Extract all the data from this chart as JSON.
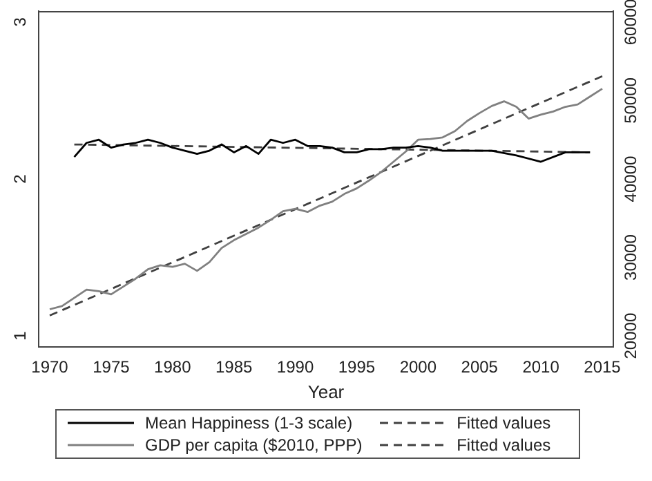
{
  "chart_data": {
    "type": "line",
    "xlabel": "Year",
    "xlim": [
      1969.1,
      2015.9
    ],
    "xticks": [
      1970,
      1975,
      1980,
      1985,
      1990,
      1995,
      2000,
      2005,
      2010,
      2015
    ],
    "ylim": [
      0.93,
      3.07
    ],
    "yticks": [
      1,
      2,
      3
    ],
    "y2lim": [
      18600,
      61400
    ],
    "y2ticks": [
      20000,
      30000,
      40000,
      50000,
      60000
    ],
    "grid": false,
    "legend": "bottom",
    "marker": "none",
    "series": [
      {
        "name": "Mean Happiness (1-3 scale)",
        "color": "#000000",
        "x": [
          1972,
          1973,
          1974,
          1975,
          1976,
          1977,
          1978,
          1979,
          1980,
          1981,
          1982,
          1983,
          1984,
          1985,
          1986,
          1987,
          1988,
          1989,
          1990,
          1991,
          1992,
          1993,
          1994,
          1995,
          1996,
          1997,
          1998,
          1999,
          2000,
          2001,
          2002,
          2004,
          2006,
          2008,
          2010,
          2012,
          2014
        ],
        "values": [
          2.14,
          2.23,
          2.25,
          2.2,
          2.22,
          2.23,
          2.25,
          2.23,
          2.2,
          2.18,
          2.16,
          2.18,
          2.22,
          2.17,
          2.21,
          2.16,
          2.25,
          2.23,
          2.25,
          2.21,
          2.21,
          2.2,
          2.17,
          2.17,
          2.19,
          2.19,
          2.2,
          2.2,
          2.21,
          2.2,
          2.18,
          2.18,
          2.18,
          2.15,
          2.11,
          2.17,
          2.17
        ]
      },
      {
        "name": "GDP per capita ($2010, PPP)",
        "color": "#808080",
        "axis": "y2",
        "x": [
          1970,
          1971,
          1973,
          1974,
          1975,
          1976,
          1977,
          1978,
          1979,
          1980,
          1981,
          1982,
          1983,
          1984,
          1985,
          1986,
          1987,
          1988,
          1989,
          1990,
          1991,
          1992,
          1993,
          1994,
          1995,
          1996,
          1997,
          1998,
          1999,
          2000,
          2001,
          2002,
          2003,
          2004,
          2005,
          2006,
          2007,
          2008,
          2009,
          2010,
          2011,
          2012,
          2013,
          2014,
          2015
        ],
        "values": [
          23400,
          23800,
          25900,
          25700,
          25300,
          26300,
          27300,
          28500,
          29000,
          28800,
          29200,
          28300,
          29400,
          31200,
          32200,
          33000,
          33800,
          34800,
          35900,
          36200,
          35800,
          36600,
          37100,
          38100,
          38800,
          39800,
          40900,
          42200,
          43500,
          45000,
          45100,
          45300,
          46100,
          47400,
          48400,
          49300,
          49900,
          49200,
          47700,
          48200,
          48600,
          49200,
          49500,
          50500,
          51500
        ]
      },
      {
        "name": "Fitted values",
        "color": "#404040",
        "line_style": "dashed",
        "x": [
          1972,
          2014
        ],
        "values": [
          2.22,
          2.17
        ]
      },
      {
        "name": "Fitted values",
        "color": "#404040",
        "line_style": "dashed",
        "axis": "y2",
        "x": [
          1970,
          2015
        ],
        "values": [
          22600,
          53100
        ]
      }
    ]
  }
}
